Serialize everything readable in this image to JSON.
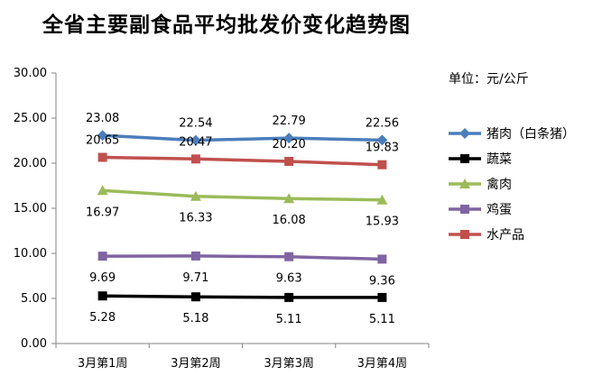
{
  "chart_data": {
    "type": "line",
    "title": "全省主要副食品平均批发价变化趋势图",
    "unit_label": "单位：元/公斤",
    "categories": [
      "3月第1周",
      "3月第2周",
      "3月第3周",
      "3月第4周"
    ],
    "ylim": [
      0,
      30
    ],
    "yticks": [
      "0.00",
      "5.00",
      "10.00",
      "15.00",
      "20.00",
      "25.00",
      "30.00"
    ],
    "grid": false,
    "legend_position": "right",
    "series": [
      {
        "name": "猪肉（白条猪）",
        "values": [
          23.08,
          22.54,
          22.79,
          22.56
        ],
        "labels": [
          "23.08",
          "22.54",
          "22.79",
          "22.56"
        ],
        "color": "#4a7ebb",
        "marker": "diamond",
        "label_pos": "above"
      },
      {
        "name": "蔬菜",
        "values": [
          5.28,
          5.18,
          5.11,
          5.11
        ],
        "labels": [
          "5.28",
          "5.18",
          "5.11",
          "5.11"
        ],
        "color": "#000000",
        "marker": "square",
        "label_pos": "below"
      },
      {
        "name": "禽肉",
        "values": [
          16.97,
          16.33,
          16.08,
          15.93
        ],
        "labels": [
          "16.97",
          "16.33",
          "16.08",
          "15.93"
        ],
        "color": "#9bbb59",
        "marker": "triangle",
        "label_pos": "below"
      },
      {
        "name": "鸡蛋",
        "values": [
          9.69,
          9.71,
          9.63,
          9.36
        ],
        "labels": [
          "9.69",
          "9.71",
          "9.63",
          "9.36"
        ],
        "color": "#8064a2",
        "marker": "square",
        "label_pos": "below"
      },
      {
        "name": "水产品",
        "values": [
          20.65,
          20.47,
          20.2,
          19.83
        ],
        "labels": [
          "20.65",
          "20.47",
          "20.20",
          "19.83"
        ],
        "color": "#c0504d",
        "marker": "square",
        "label_pos": "above"
      }
    ]
  }
}
